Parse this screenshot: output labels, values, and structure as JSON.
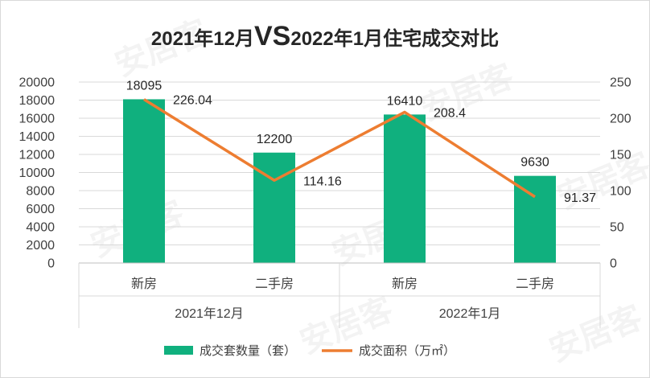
{
  "chart_data": {
    "type": "bar",
    "title": "2021年12月VS2022年1月住宅成交对比",
    "title_parts": {
      "before": "2021年12月",
      "vs": "VS",
      "after": "2022年1月住宅成交对比"
    },
    "categories": [
      "新房",
      "二手房",
      "新房",
      "二手房"
    ],
    "groups": [
      {
        "label": "2021年12月",
        "span": [
          0,
          1
        ]
      },
      {
        "label": "2022年1月",
        "span": [
          2,
          3
        ]
      }
    ],
    "series": [
      {
        "name": "成交套数量（套）",
        "type": "bar",
        "axis": "left",
        "color": "#10b07e",
        "values": [
          18095,
          12200,
          16410,
          9630
        ]
      },
      {
        "name": "成交面积（万㎡）",
        "type": "line",
        "axis": "right",
        "color": "#ed7d31",
        "values": [
          226.04,
          114.16,
          208.4,
          91.37
        ]
      }
    ],
    "bar_labels": [
      "18095",
      "12200",
      "16410",
      "9630"
    ],
    "line_labels": [
      "226.04",
      "114.16",
      "208.4",
      "91.37"
    ],
    "ylim_left": [
      0,
      20000
    ],
    "yticks_left": [
      0,
      2000,
      4000,
      6000,
      8000,
      10000,
      12000,
      14000,
      16000,
      18000,
      20000
    ],
    "ylim_right": [
      0,
      250
    ],
    "yticks_right": [
      0,
      50,
      100,
      150,
      200,
      250
    ],
    "grid": true,
    "legend_position": "bottom"
  },
  "watermark": "安居客"
}
